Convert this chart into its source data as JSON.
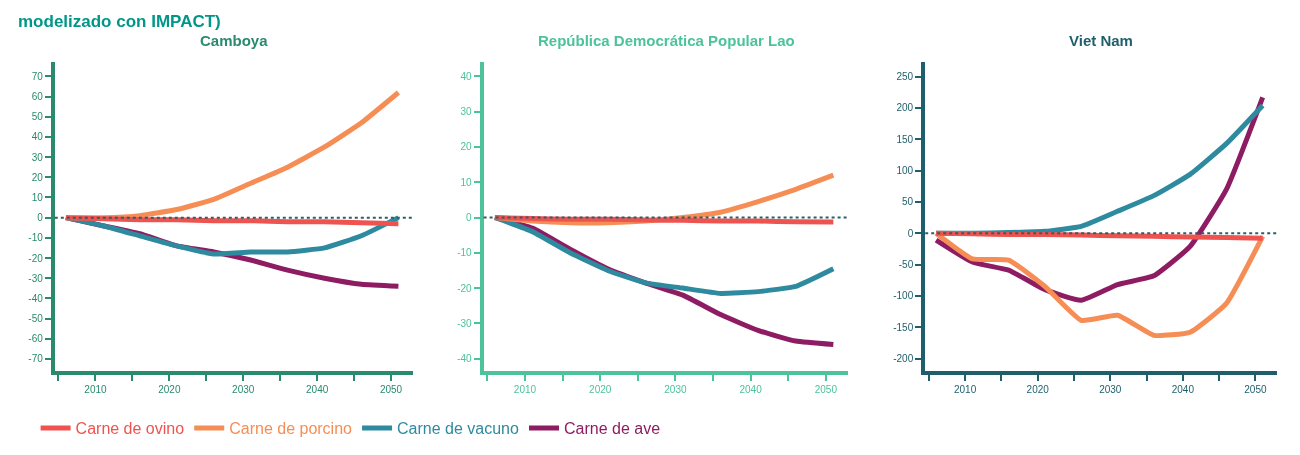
{
  "chart_data": [
    {
      "type": "line",
      "title": "Camboya",
      "annotations": [
        "modelizado con IMPACT)"
      ],
      "legend": "bottom",
      "xlim": [
        2004.5,
        2053
      ],
      "xticks": [
        {
          "value": 2005,
          "label": null
        },
        2010,
        {
          "value": 2015,
          "label": null
        },
        2020,
        {
          "value": 2025,
          "label": null
        },
        2030,
        {
          "value": 2035,
          "label": null
        },
        2040,
        {
          "value": 2045,
          "label": null
        },
        2050
      ],
      "ylim": [
        -76,
        77
      ],
      "yticks": [
        -70,
        -60,
        -50,
        -40,
        -30,
        -20,
        -10,
        0,
        10,
        20,
        30,
        40,
        50,
        60,
        70
      ],
      "x": [
        2006,
        2011,
        2016,
        2021,
        2026,
        2031,
        2036,
        2041,
        2046,
        2051
      ],
      "ref_lines": [
        {
          "axis": "y",
          "value": 0,
          "color": "#2f5d66",
          "line_style": "dotted"
        }
      ],
      "series": [
        {
          "name": "Carne de ovino",
          "color": "#ef5350",
          "values": [
            0,
            -0.5,
            -1,
            -1,
            -1.5,
            -1.5,
            -2,
            -2,
            -2.5,
            -3
          ]
        },
        {
          "name": "Carne de porcino",
          "color": "#f68d55",
          "values": [
            0,
            0,
            1,
            4,
            9,
            17,
            25,
            35,
            47,
            62
          ]
        },
        {
          "name": "Carne de vacuno",
          "color": "#2e8a9e",
          "values": [
            0,
            -4,
            -9,
            -14,
            -18,
            -17,
            -17,
            -15,
            -9,
            0
          ]
        },
        {
          "name": "Carne de ave",
          "color": "#8e1c63",
          "values": [
            0,
            -4,
            -8,
            -14,
            -17,
            -21,
            -26,
            -30,
            -33,
            -34
          ]
        }
      ]
    },
    {
      "type": "line",
      "title": "República Democrática Popular Lao",
      "xlim": [
        2004.5,
        2053
      ],
      "xticks": [
        {
          "value": 2005,
          "label": null
        },
        2010,
        {
          "value": 2015,
          "label": null
        },
        2020,
        {
          "value": 2025,
          "label": null
        },
        2030,
        {
          "value": 2035,
          "label": null
        },
        2040,
        {
          "value": 2045,
          "label": null
        },
        2050
      ],
      "ylim": [
        -43.5,
        44
      ],
      "yticks": [
        -40,
        -30,
        -20,
        -10,
        0,
        10,
        20,
        30,
        40
      ],
      "x": [
        2006,
        2011,
        2016,
        2021,
        2026,
        2031,
        2036,
        2041,
        2046,
        2051
      ],
      "ref_lines": [
        {
          "axis": "y",
          "value": 0,
          "color": "#2f5d66",
          "line_style": "dotted"
        }
      ],
      "series": [
        {
          "color": "#ef5350",
          "values": [
            0,
            -0.3,
            -0.5,
            -0.5,
            -0.7,
            -0.8,
            -1,
            -1,
            -1.2,
            -1.3
          ]
        },
        {
          "color": "#f68d55",
          "values": [
            0,
            -1,
            -1.5,
            -1.5,
            -1,
            0,
            1.5,
            4.5,
            8,
            12
          ]
        },
        {
          "color": "#2e8a9e",
          "values": [
            0,
            -4,
            -10,
            -15,
            -18.5,
            -20,
            -21.5,
            -21,
            -19.5,
            -14.5
          ]
        },
        {
          "color": "#8e1c63",
          "values": [
            0,
            -3,
            -9,
            -14.5,
            -18.5,
            -22,
            -27.5,
            -32,
            -35,
            -36
          ]
        }
      ]
    },
    {
      "type": "line",
      "title": "Viet Nam",
      "xlim": [
        2004.5,
        2053
      ],
      "xticks": [
        {
          "value": 2005,
          "label": null
        },
        2010,
        {
          "value": 2015,
          "label": null
        },
        2020,
        {
          "value": 2025,
          "label": null
        },
        2030,
        {
          "value": 2035,
          "label": null
        },
        2040,
        {
          "value": 2045,
          "label": null
        },
        2050
      ],
      "ylim": [
        -220,
        273
      ],
      "yticks": [
        -200,
        -150,
        -100,
        -50,
        0,
        50,
        100,
        150,
        200,
        250
      ],
      "x": [
        2006,
        2011,
        2016,
        2021,
        2026,
        2031,
        2036,
        2041,
        2046,
        2051
      ],
      "ref_lines": [
        {
          "axis": "y",
          "value": 0,
          "color": "#2f5d66",
          "line_style": "dotted"
        }
      ],
      "series": [
        {
          "color": "#ef5350",
          "values": [
            0,
            -1,
            -2,
            -2,
            -3,
            -4,
            -5,
            -6,
            -7,
            -8
          ]
        },
        {
          "color": "#f68d55",
          "values": [
            0,
            -41,
            -43,
            -85,
            -139,
            -131,
            -163,
            -158,
            -112,
            -5
          ]
        },
        {
          "color": "#2e8a9e",
          "values": [
            0,
            0,
            1,
            3,
            11,
            35,
            60,
            94,
            143,
            204
          ]
        },
        {
          "color": "#8e1c63",
          "values": [
            -11,
            -46,
            -59,
            -90,
            -107,
            -82,
            -68,
            -21,
            70,
            217
          ]
        }
      ]
    }
  ]
}
